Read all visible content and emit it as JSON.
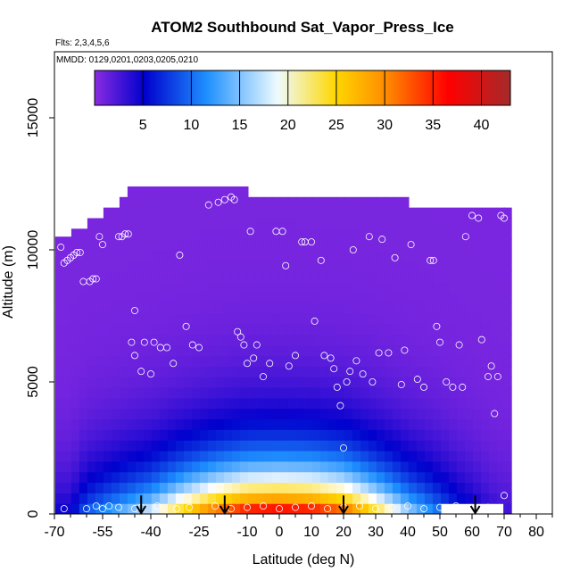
{
  "chart_data": {
    "type": "heatmap",
    "title": "ATOM2 Southbound Sat_Vapor_Press_Ice",
    "subtitle": "Flts: 2,3,4,5,6",
    "inset_label": "MMDD: 0129,0201,0203,0205,0210",
    "xlabel": "Latitude (deg N)",
    "ylabel": "Altitude (m)",
    "xlim": [
      -70,
      85
    ],
    "ylim": [
      0,
      17500
    ],
    "x_ticks": [
      -70,
      -55,
      -40,
      -25,
      -10,
      0,
      10,
      20,
      30,
      40,
      50,
      60,
      70,
      80
    ],
    "x_tick_labels": [
      "-70",
      "-55",
      "-40",
      "-25",
      "-10",
      "0",
      "10",
      "20",
      "30",
      "40",
      "50",
      "60",
      "70",
      "80"
    ],
    "y_ticks": [
      0,
      5000,
      10000,
      15000
    ],
    "y_tick_labels": [
      "0",
      "5000",
      "10000",
      "15000"
    ],
    "grid": false,
    "colorbar": {
      "placement": "top-inside",
      "range": [
        0,
        43
      ],
      "ticks": [
        5,
        10,
        15,
        20,
        25,
        30,
        35,
        40
      ],
      "tick_labels": [
        "5",
        "10",
        "15",
        "20",
        "25",
        "30",
        "35",
        "40"
      ],
      "colors": [
        "#8a2be2",
        "#0000cd",
        "#1e90ff",
        "#ffffff",
        "#ffd700",
        "#ff8c00",
        "#ff0000",
        "#a52a2a"
      ]
    },
    "surface_profile": {
      "x": [
        -65,
        -60,
        -40,
        -30,
        -20,
        -10,
        0,
        10,
        20,
        30,
        40,
        50,
        55,
        60,
        65,
        70
      ],
      "values": [
        5,
        10,
        19,
        27,
        34,
        39,
        40,
        39,
        35,
        26,
        17,
        11,
        8,
        6,
        4,
        3
      ]
    },
    "column_tops": {
      "x": [
        -68.5,
        -66,
        -63.5,
        -61,
        -58.5,
        -56,
        -53.5,
        -51,
        -48.5,
        -46,
        -43.5,
        -41,
        -38.5,
        -36,
        -33.5,
        -31,
        -28.5,
        -26,
        -23.5,
        -21,
        -18.5,
        -16,
        -13.5,
        -11,
        -8.5,
        -6,
        -3.5,
        -1,
        1.5,
        4,
        6.5,
        9,
        11.5,
        14,
        16.5,
        19,
        21.5,
        24,
        26.5,
        29,
        31.5,
        34,
        36.5,
        39,
        41.5,
        44,
        46.5,
        49,
        51.5,
        54,
        56.5,
        59,
        61.5,
        64,
        66.5,
        69,
        71
      ],
      "values": [
        10500,
        10500,
        10800,
        10800,
        11200,
        11200,
        11600,
        11600,
        12000,
        12400,
        12400,
        12400,
        12400,
        12400,
        12400,
        12400,
        12400,
        12400,
        12400,
        12400,
        12400,
        12400,
        12400,
        12400,
        12000,
        12000,
        12000,
        12000,
        12000,
        12000,
        12000,
        12000,
        12000,
        12000,
        12000,
        12000,
        12000,
        12000,
        12000,
        12000,
        12000,
        12000,
        12000,
        12000,
        11600,
        11600,
        11600,
        11600,
        11600,
        11600,
        11600,
        11600,
        11600,
        11600,
        11600,
        11600,
        11600
      ]
    },
    "bottom_gap": {
      "x": [
        50,
        70
      ],
      "y": [
        0,
        400
      ]
    },
    "sample_points": {
      "x": [
        -68,
        -67,
        -66,
        -65,
        -64,
        -63,
        -62,
        -61,
        -59,
        -58,
        -57,
        -56,
        -55,
        -54,
        -53,
        -51,
        -50,
        -49,
        -48,
        -47,
        -46,
        -45,
        -45,
        -43,
        -42,
        -40,
        -39,
        -37,
        -35,
        -33,
        -31,
        -29,
        -27,
        -25,
        -22,
        -19,
        -17,
        -15,
        -14,
        -13,
        -12,
        -11,
        -10,
        -9,
        -8,
        -7,
        -5,
        -3,
        -1,
        1,
        2,
        3,
        5,
        7,
        8,
        10,
        11,
        13,
        14,
        16,
        17,
        18,
        19,
        20,
        21,
        22,
        23,
        24,
        26,
        28,
        29,
        31,
        32,
        34,
        36,
        38,
        39,
        41,
        43,
        45,
        47,
        48,
        49,
        50,
        52,
        54,
        56,
        57,
        58,
        60,
        62,
        63,
        65,
        66,
        67,
        68,
        69,
        70,
        -67,
        -60,
        -57,
        -55,
        -53,
        -50,
        -45,
        -43,
        -38,
        -32,
        -28,
        -20,
        -15,
        -10,
        -5,
        0,
        5,
        10,
        15,
        20,
        25,
        30,
        35,
        40,
        45,
        50,
        55,
        60,
        65,
        70
      ],
      "y": [
        10100,
        9500,
        9600,
        9700,
        9800,
        9900,
        9900,
        8800,
        8800,
        8900,
        8900,
        10500,
        10200,
        11800,
        12000,
        12200,
        10500,
        10500,
        10600,
        10600,
        6500,
        6000,
        7700,
        5400,
        6500,
        5300,
        6500,
        6300,
        6300,
        5700,
        9800,
        7100,
        6400,
        6300,
        11700,
        11800,
        11900,
        12000,
        11900,
        6900,
        6700,
        6400,
        5700,
        10700,
        5900,
        6400,
        5200,
        5700,
        10700,
        10700,
        9400,
        5600,
        6000,
        10300,
        10300,
        10300,
        7300,
        9600,
        6000,
        5900,
        5500,
        4800,
        4100,
        2500,
        5000,
        5400,
        10000,
        5800,
        5300,
        10500,
        5000,
        6100,
        10400,
        6100,
        9700,
        4900,
        6200,
        10200,
        5100,
        4800,
        9600,
        9600,
        7100,
        6500,
        5000,
        4800,
        6400,
        4800,
        10500,
        11300,
        11200,
        6600,
        5200,
        5600,
        3800,
        5200,
        11300,
        11200,
        200,
        200,
        300,
        200,
        300,
        250,
        200,
        250,
        300,
        200,
        250,
        300,
        200,
        250,
        300,
        200,
        250,
        300,
        200,
        250,
        300,
        200,
        250,
        300,
        200,
        250,
        300,
        200,
        250,
        700
      ]
    },
    "arrows": {
      "x": [
        -43,
        -17,
        20,
        61
      ],
      "y_top": [
        700,
        700,
        700,
        700
      ]
    }
  }
}
